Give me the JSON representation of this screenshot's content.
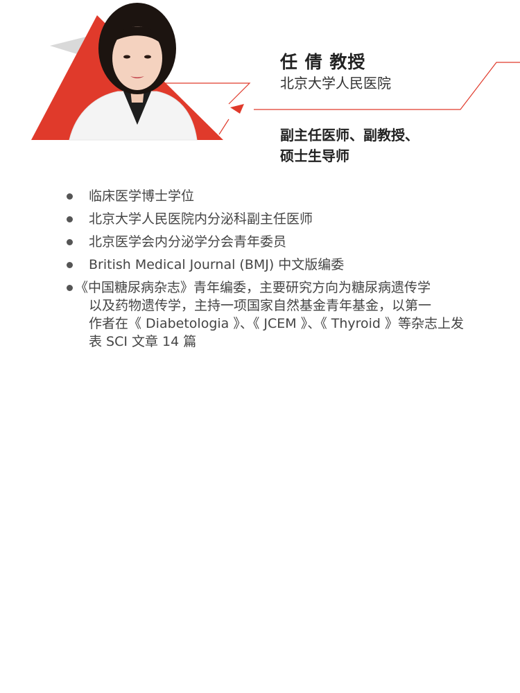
{
  "profile": {
    "name": "任 倩 教授",
    "hospital": "北京大学人民医院",
    "titles": [
      "副主任医师、副教授、",
      "硕士生导师"
    ]
  },
  "bio": {
    "items": [
      "临床医学博士学位",
      "北京大学人民医院内分泌科副主任医师",
      "北京医学会内分泌学分会青年委员",
      "British Medical Journal (BMJ) 中文版编委"
    ],
    "last_item": {
      "first": "《中国糖尿病杂志》青年编委，主要研究方向为糖尿病遗传学",
      "rest": [
        "以及药物遗传学，主持一项国家自然基金青年基金，以第一",
        "作者在《 Diabetologia 》、《 JCEM 》、《 Thyroid 》等杂志上发",
        "表 SCI 文章 14 篇"
      ]
    }
  },
  "colors": {
    "accent": "#e03a2b",
    "gray_shape": "#d9d9d9",
    "bullet": "#555555"
  }
}
